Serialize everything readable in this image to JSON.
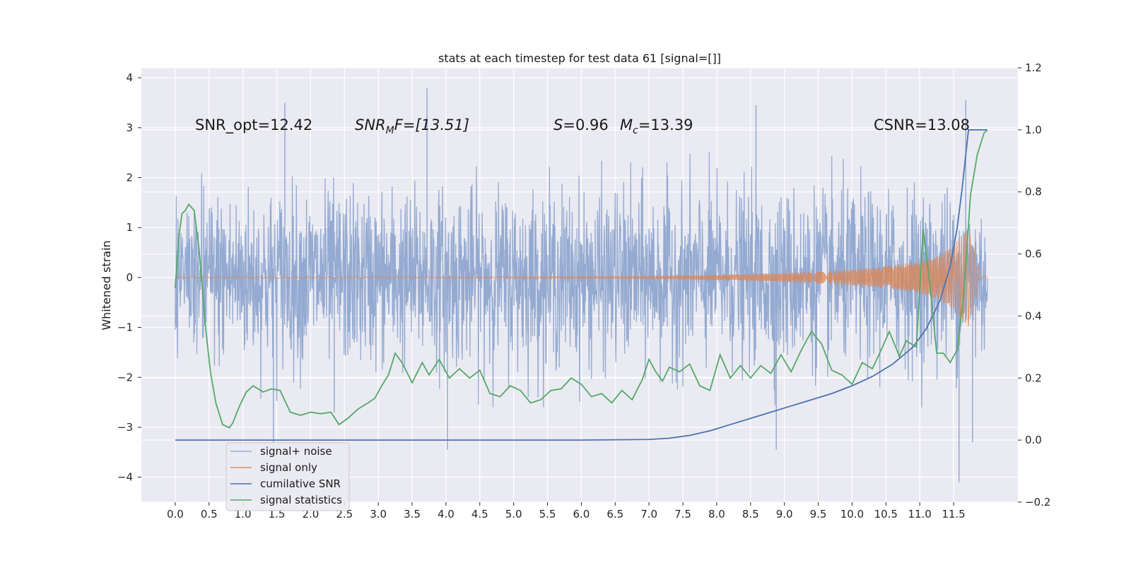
{
  "chart_data": {
    "type": "line",
    "title": "stats at each timestep for test data 61 [signal=[]]",
    "ylabel": "Whitened strain",
    "xlabel": "",
    "xlim": [
      -0.5,
      12.45
    ],
    "ylim": [
      -4.5,
      4.2
    ],
    "y2lim": [
      -0.2,
      1.2
    ],
    "grid": true,
    "legend_position": "lower-left",
    "x_ticks": [
      "0.0",
      "0.5",
      "1.0",
      "1.5",
      "2.0",
      "2.5",
      "3.0",
      "3.5",
      "4.0",
      "4.5",
      "5.0",
      "5.5",
      "6.0",
      "6.5",
      "7.0",
      "7.5",
      "8.0",
      "8.5",
      "9.0",
      "9.5",
      "10.0",
      "10.5",
      "11.0",
      "11.5"
    ],
    "y_ticks": [
      "4",
      "3",
      "2",
      "1",
      "0",
      "−1",
      "−2",
      "−3",
      "−4"
    ],
    "y2_ticks": [
      "1.2",
      "1.0",
      "0.8",
      "0.6",
      "0.4",
      "0.2",
      "0.0",
      "−0.2"
    ],
    "annotations": {
      "snr_opt": "SNR_opt=12.42",
      "snr_mf_base": "SNR",
      "snr_mf_sub": "M",
      "snr_mf_tail": "F=[13.51]",
      "s_stat_var": "S",
      "s_stat_val": "=0.96",
      "mc_var": "M",
      "mc_sub": "c",
      "mc_val": "=13.39",
      "csnr": "CSNR=13.08"
    },
    "series": [
      {
        "name": "signal+ noise",
        "axis": "left",
        "color": "#8fa6cf",
        "description_stats": {
          "x_start": 0.0,
          "x_end": 12.0,
          "typical_range": [
            -1.7,
            1.75
          ],
          "spikes": [
            [
              1.62,
              3.5
            ],
            [
              3.72,
              3.8
            ],
            [
              8.58,
              3.45
            ],
            [
              11.68,
              3.55
            ],
            [
              4.02,
              -3.45
            ],
            [
              8.88,
              -3.45
            ],
            [
              11.58,
              -4.1
            ],
            [
              1.45,
              -3.3
            ],
            [
              2.35,
              -2.7
            ],
            [
              11.78,
              -3.3
            ]
          ]
        }
      },
      {
        "name": "signal only",
        "axis": "left",
        "color": "#dd8452",
        "envelope": [
          [
            0.0,
            0.01
          ],
          [
            7.0,
            0.02
          ],
          [
            8.0,
            0.05
          ],
          [
            9.0,
            0.09
          ],
          [
            10.0,
            0.16
          ],
          [
            10.5,
            0.22
          ],
          [
            11.0,
            0.33
          ],
          [
            11.3,
            0.45
          ],
          [
            11.5,
            0.65
          ],
          [
            11.65,
            0.9
          ],
          [
            11.72,
            1.0
          ],
          [
            11.78,
            0.7
          ],
          [
            11.85,
            0.3
          ],
          [
            11.9,
            0.05
          ],
          [
            12.0,
            0.0
          ]
        ]
      },
      {
        "name": "cumilative SNR",
        "axis": "right",
        "color": "#4c72b0",
        "x": [
          0.0,
          6.0,
          7.0,
          7.3,
          7.6,
          7.9,
          8.2,
          8.5,
          8.8,
          9.1,
          9.4,
          9.7,
          10.0,
          10.3,
          10.6,
          10.9,
          11.1,
          11.3,
          11.45,
          11.55,
          11.62,
          11.68,
          11.72,
          11.8,
          12.0
        ],
        "y": [
          0.0,
          0.0,
          0.002,
          0.006,
          0.015,
          0.03,
          0.05,
          0.07,
          0.09,
          0.11,
          0.13,
          0.15,
          0.175,
          0.205,
          0.245,
          0.3,
          0.36,
          0.45,
          0.56,
          0.68,
          0.8,
          0.92,
          1.0,
          1.0,
          1.0
        ]
      },
      {
        "name": "signal statistics",
        "axis": "right",
        "color": "#55a868",
        "x": [
          0.0,
          0.05,
          0.1,
          0.15,
          0.2,
          0.28,
          0.35,
          0.45,
          0.52,
          0.6,
          0.7,
          0.8,
          0.85,
          0.95,
          1.05,
          1.15,
          1.3,
          1.42,
          1.55,
          1.7,
          1.85,
          2.0,
          2.15,
          2.3,
          2.42,
          2.55,
          2.7,
          2.85,
          2.95,
          3.05,
          3.15,
          3.25,
          3.35,
          3.5,
          3.65,
          3.75,
          3.9,
          4.05,
          4.2,
          4.35,
          4.5,
          4.65,
          4.8,
          4.95,
          5.1,
          5.25,
          5.4,
          5.55,
          5.7,
          5.85,
          6.0,
          6.15,
          6.3,
          6.45,
          6.6,
          6.75,
          6.9,
          7.0,
          7.1,
          7.2,
          7.3,
          7.45,
          7.6,
          7.75,
          7.9,
          8.05,
          8.2,
          8.35,
          8.5,
          8.65,
          8.8,
          8.95,
          9.1,
          9.25,
          9.4,
          9.55,
          9.7,
          9.85,
          10.0,
          10.15,
          10.3,
          10.45,
          10.55,
          10.7,
          10.8,
          10.95,
          11.05,
          11.15,
          11.25,
          11.35,
          11.45,
          11.55,
          11.65,
          11.75,
          11.85,
          11.95,
          12.0
        ],
        "y": [
          0.49,
          0.65,
          0.73,
          0.74,
          0.76,
          0.74,
          0.62,
          0.36,
          0.22,
          0.12,
          0.05,
          0.04,
          0.055,
          0.11,
          0.155,
          0.175,
          0.155,
          0.165,
          0.16,
          0.09,
          0.08,
          0.09,
          0.085,
          0.09,
          0.05,
          0.07,
          0.1,
          0.12,
          0.135,
          0.175,
          0.21,
          0.28,
          0.25,
          0.185,
          0.25,
          0.21,
          0.26,
          0.2,
          0.23,
          0.2,
          0.225,
          0.15,
          0.14,
          0.175,
          0.16,
          0.12,
          0.13,
          0.16,
          0.165,
          0.2,
          0.18,
          0.14,
          0.15,
          0.12,
          0.16,
          0.13,
          0.195,
          0.26,
          0.22,
          0.19,
          0.235,
          0.22,
          0.245,
          0.175,
          0.16,
          0.275,
          0.2,
          0.24,
          0.2,
          0.24,
          0.215,
          0.275,
          0.22,
          0.29,
          0.35,
          0.31,
          0.225,
          0.21,
          0.18,
          0.25,
          0.23,
          0.3,
          0.35,
          0.27,
          0.32,
          0.3,
          0.68,
          0.5,
          0.28,
          0.28,
          0.25,
          0.29,
          0.47,
          0.79,
          0.92,
          0.99,
          1.0
        ]
      }
    ]
  }
}
